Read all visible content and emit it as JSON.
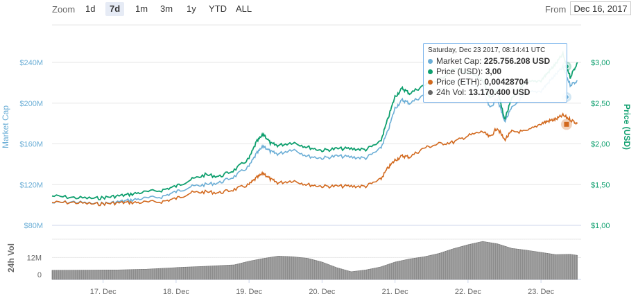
{
  "zoom": {
    "label": "Zoom",
    "buttons": [
      "1d",
      "7d",
      "1m",
      "3m",
      "1y",
      "YTD",
      "ALL"
    ],
    "active": "7d"
  },
  "range": {
    "from_label": "From",
    "from_value": "Dec 16, 2017"
  },
  "tooltip": {
    "header": "Saturday, Dec 23 2017, 08:14:41 UTC",
    "rows": [
      {
        "label": "Market Cap:",
        "value": "225.756.208 USD",
        "color": "#6baed6"
      },
      {
        "label": "Price (USD):",
        "value": "3,00",
        "color": "#0e9f6e"
      },
      {
        "label": "Price (ETH):",
        "value": "0,00428704",
        "color": "#d2691e"
      },
      {
        "label": "24h Vol:",
        "value": "13.170.400 USD",
        "color": "#666666"
      }
    ]
  },
  "colors": {
    "market_cap": "#6baed6",
    "price_usd": "#0e9f6e",
    "price_eth": "#d2691e",
    "volume": "#666666",
    "grid": "#e6e6e6"
  },
  "chart_data": {
    "type": "line",
    "x_labels": [
      "17. Dec",
      "18. Dec",
      "19. Dec",
      "20. Dec",
      "21. Dec",
      "22. Dec",
      "23. Dec"
    ],
    "left_axis": {
      "title": "Market Cap",
      "ticks": [
        "$80M",
        "$120M",
        "$160M",
        "$200M",
        "$240M"
      ],
      "range": [
        80,
        240
      ]
    },
    "right_axis": {
      "title": "Price (USD)",
      "ticks": [
        "$1,00",
        "$1,50",
        "$2,00",
        "$2,50",
        "$3,00"
      ],
      "range": [
        1.0,
        3.0
      ]
    },
    "volume_axis": {
      "title": "24h Vol",
      "ticks": [
        "0",
        "12M"
      ]
    },
    "x_range": [
      16.3,
      23.55
    ],
    "series": [
      {
        "name": "Market Cap",
        "key": "market_cap",
        "x": [
          16.3,
          16.6,
          16.9,
          17.1,
          17.3,
          17.5,
          17.8,
          18.0,
          18.2,
          18.4,
          18.6,
          18.8,
          19.0,
          19.1,
          19.2,
          19.3,
          19.4,
          19.6,
          19.8,
          20.0,
          20.2,
          20.4,
          20.6,
          20.8,
          20.9,
          21.0,
          21.1,
          21.2,
          21.4,
          21.6,
          21.8,
          22.0,
          22.2,
          22.3,
          22.4,
          22.5,
          22.6,
          22.8,
          23.0,
          23.1,
          23.2,
          23.3,
          23.4,
          23.5
        ],
        "values": [
          102,
          103,
          101,
          102,
          104,
          106,
          108,
          113,
          118,
          120,
          122,
          128,
          138,
          150,
          158,
          152,
          150,
          155,
          148,
          146,
          148,
          147,
          146,
          155,
          172,
          195,
          203,
          200,
          208,
          212,
          222,
          220,
          212,
          195,
          205,
          182,
          195,
          210,
          212,
          220,
          228,
          235,
          218,
          222
        ]
      },
      {
        "name": "Price (USD)",
        "key": "price_usd",
        "x": [
          16.3,
          16.6,
          16.9,
          17.1,
          17.3,
          17.5,
          17.8,
          18.0,
          18.2,
          18.4,
          18.6,
          18.8,
          19.0,
          19.1,
          19.2,
          19.3,
          19.4,
          19.6,
          19.8,
          20.0,
          20.2,
          20.4,
          20.6,
          20.8,
          20.9,
          21.0,
          21.1,
          21.2,
          21.4,
          21.6,
          21.8,
          22.0,
          22.2,
          22.3,
          22.4,
          22.5,
          22.6,
          22.8,
          23.0,
          23.1,
          23.2,
          23.3,
          23.4,
          23.5
        ],
        "values": [
          1.36,
          1.34,
          1.33,
          1.35,
          1.37,
          1.4,
          1.43,
          1.48,
          1.56,
          1.62,
          1.6,
          1.68,
          1.82,
          2.02,
          2.12,
          2.0,
          1.98,
          2.02,
          1.96,
          1.92,
          1.94,
          1.94,
          1.93,
          2.02,
          2.3,
          2.58,
          2.68,
          2.62,
          2.72,
          2.78,
          2.92,
          2.88,
          2.78,
          2.55,
          2.68,
          2.3,
          2.55,
          2.75,
          2.78,
          2.88,
          2.98,
          3.1,
          2.82,
          3.0
        ]
      },
      {
        "name": "Price (ETH)",
        "key": "price_eth",
        "x": [
          16.3,
          16.6,
          16.9,
          17.1,
          17.3,
          17.5,
          17.8,
          18.0,
          18.2,
          18.4,
          18.6,
          18.8,
          19.0,
          19.1,
          19.2,
          19.3,
          19.4,
          19.6,
          19.8,
          20.0,
          20.2,
          20.4,
          20.6,
          20.8,
          20.9,
          21.0,
          21.1,
          21.2,
          21.4,
          21.6,
          21.8,
          22.0,
          22.2,
          22.3,
          22.4,
          22.5,
          22.6,
          22.8,
          23.0,
          23.1,
          23.2,
          23.3,
          23.4,
          23.5
        ],
        "values": [
          1.28,
          1.28,
          1.26,
          1.27,
          1.28,
          1.28,
          1.29,
          1.33,
          1.4,
          1.41,
          1.4,
          1.44,
          1.5,
          1.58,
          1.64,
          1.56,
          1.52,
          1.55,
          1.5,
          1.48,
          1.48,
          1.48,
          1.48,
          1.56,
          1.7,
          1.8,
          1.85,
          1.84,
          1.95,
          2.0,
          2.02,
          2.1,
          2.15,
          2.08,
          2.2,
          2.05,
          2.15,
          2.15,
          2.25,
          2.28,
          2.3,
          2.35,
          2.3,
          2.25
        ]
      }
    ],
    "volume": {
      "x": [
        16.3,
        16.8,
        17.2,
        17.6,
        18.0,
        18.4,
        18.8,
        19.0,
        19.2,
        19.4,
        19.6,
        19.8,
        20.0,
        20.2,
        20.4,
        20.6,
        20.8,
        21.0,
        21.2,
        21.4,
        21.6,
        21.8,
        22.0,
        22.2,
        22.4,
        22.6,
        22.8,
        23.0,
        23.2,
        23.4,
        23.5
      ],
      "values": [
        5.0,
        5.1,
        5.2,
        5.6,
        6.5,
        7.2,
        8.0,
        10.0,
        11.5,
        12.8,
        12.4,
        11.6,
        9.5,
        6.5,
        4.2,
        5.2,
        6.8,
        9.5,
        11.2,
        12.4,
        14.2,
        16.8,
        19.0,
        20.8,
        19.5,
        17.0,
        16.0,
        14.8,
        13.6,
        13.8,
        13.2
      ],
      "max": 22
    },
    "grid": true,
    "tooltip_x": 23.35
  }
}
